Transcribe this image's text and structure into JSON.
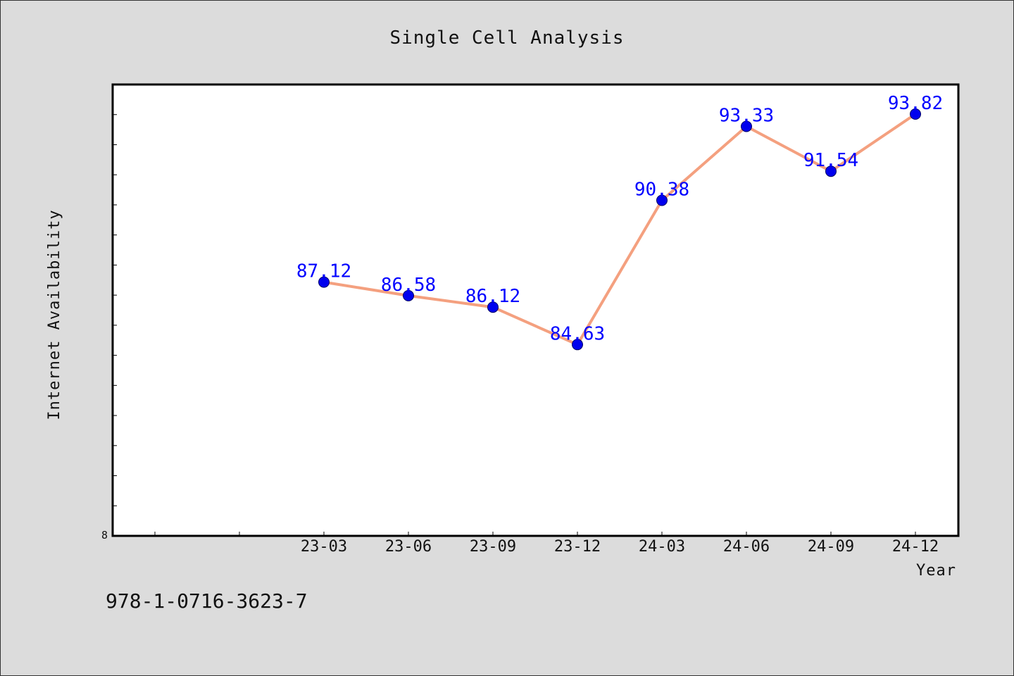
{
  "chart_data": {
    "type": "line",
    "title": "Single Cell Analysis",
    "xlabel": "Year",
    "ylabel": "Internet Availability",
    "categories": [
      "23-03",
      "23-06",
      "23-09",
      "23-12",
      "24-03",
      "24-06",
      "24-09",
      "24-12"
    ],
    "series": [
      {
        "values": [
          87.12,
          86.58,
          86.12,
          84.63,
          90.38,
          93.33,
          91.54,
          93.82
        ],
        "labels": [
          "87.12",
          "86.58",
          "86.12",
          "84.63",
          "90.38",
          "93.33",
          "91.54",
          "93.82"
        ],
        "line_color": "#f4a07f",
        "marker_color": "#0000ee"
      }
    ],
    "y_tick_labels": [
      "8"
    ],
    "ylim": [
      77,
      95
    ],
    "grid": false,
    "legend": "none"
  },
  "footer": {
    "identifier": "978-1-0716-3623-7"
  },
  "colors": {
    "background": "#dcdcdc",
    "plot_background": "#ffffff",
    "data_label": "#0000ff"
  }
}
